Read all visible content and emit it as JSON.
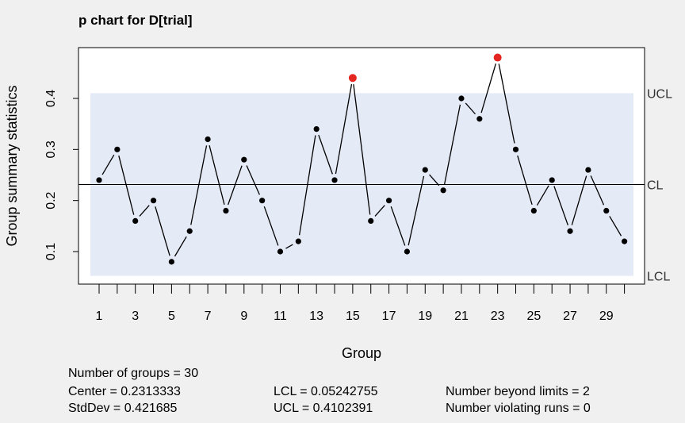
{
  "chart_data": {
    "type": "line",
    "title": "p chart for D[trial]",
    "xlabel": "Group",
    "ylabel": "Group summary statistics",
    "x": [
      1,
      2,
      3,
      4,
      5,
      6,
      7,
      8,
      9,
      10,
      11,
      12,
      13,
      14,
      15,
      16,
      17,
      18,
      19,
      20,
      21,
      22,
      23,
      24,
      25,
      26,
      27,
      28,
      29,
      30
    ],
    "values": [
      0.24,
      0.3,
      0.16,
      0.2,
      0.08,
      0.14,
      0.32,
      0.18,
      0.28,
      0.2,
      0.1,
      0.12,
      0.34,
      0.24,
      0.44,
      0.16,
      0.2,
      0.1,
      0.26,
      0.22,
      0.4,
      0.36,
      0.48,
      0.3,
      0.18,
      0.24,
      0.14,
      0.26,
      0.18,
      0.12
    ],
    "out_of_control": [
      15,
      23
    ],
    "x_ticks": [
      1,
      3,
      5,
      7,
      9,
      11,
      13,
      15,
      17,
      19,
      21,
      23,
      25,
      27,
      29
    ],
    "y_ticks": [
      0.1,
      0.2,
      0.3,
      0.4
    ],
    "ylim": [
      0.0,
      0.5
    ],
    "center": 0.2313333,
    "lcl": 0.05242755,
    "ucl": 0.4102391,
    "limit_labels": {
      "ucl": "UCL",
      "cl": "CL",
      "lcl": "LCL"
    },
    "colors": {
      "band": "#e5eaf7",
      "point": "#000000",
      "violation": "#e3261f",
      "background": "#f0f0f0",
      "plot_bg": "#ffffff"
    }
  },
  "stats": {
    "groups": "Number of groups = 30",
    "center": "Center = 0.2313333",
    "stddev": "StdDev = 0.421685",
    "lcl": "LCL = 0.05242755",
    "ucl": "UCL = 0.4102391",
    "beyond": "Number beyond limits = 2",
    "runs": "Number violating runs = 0"
  }
}
